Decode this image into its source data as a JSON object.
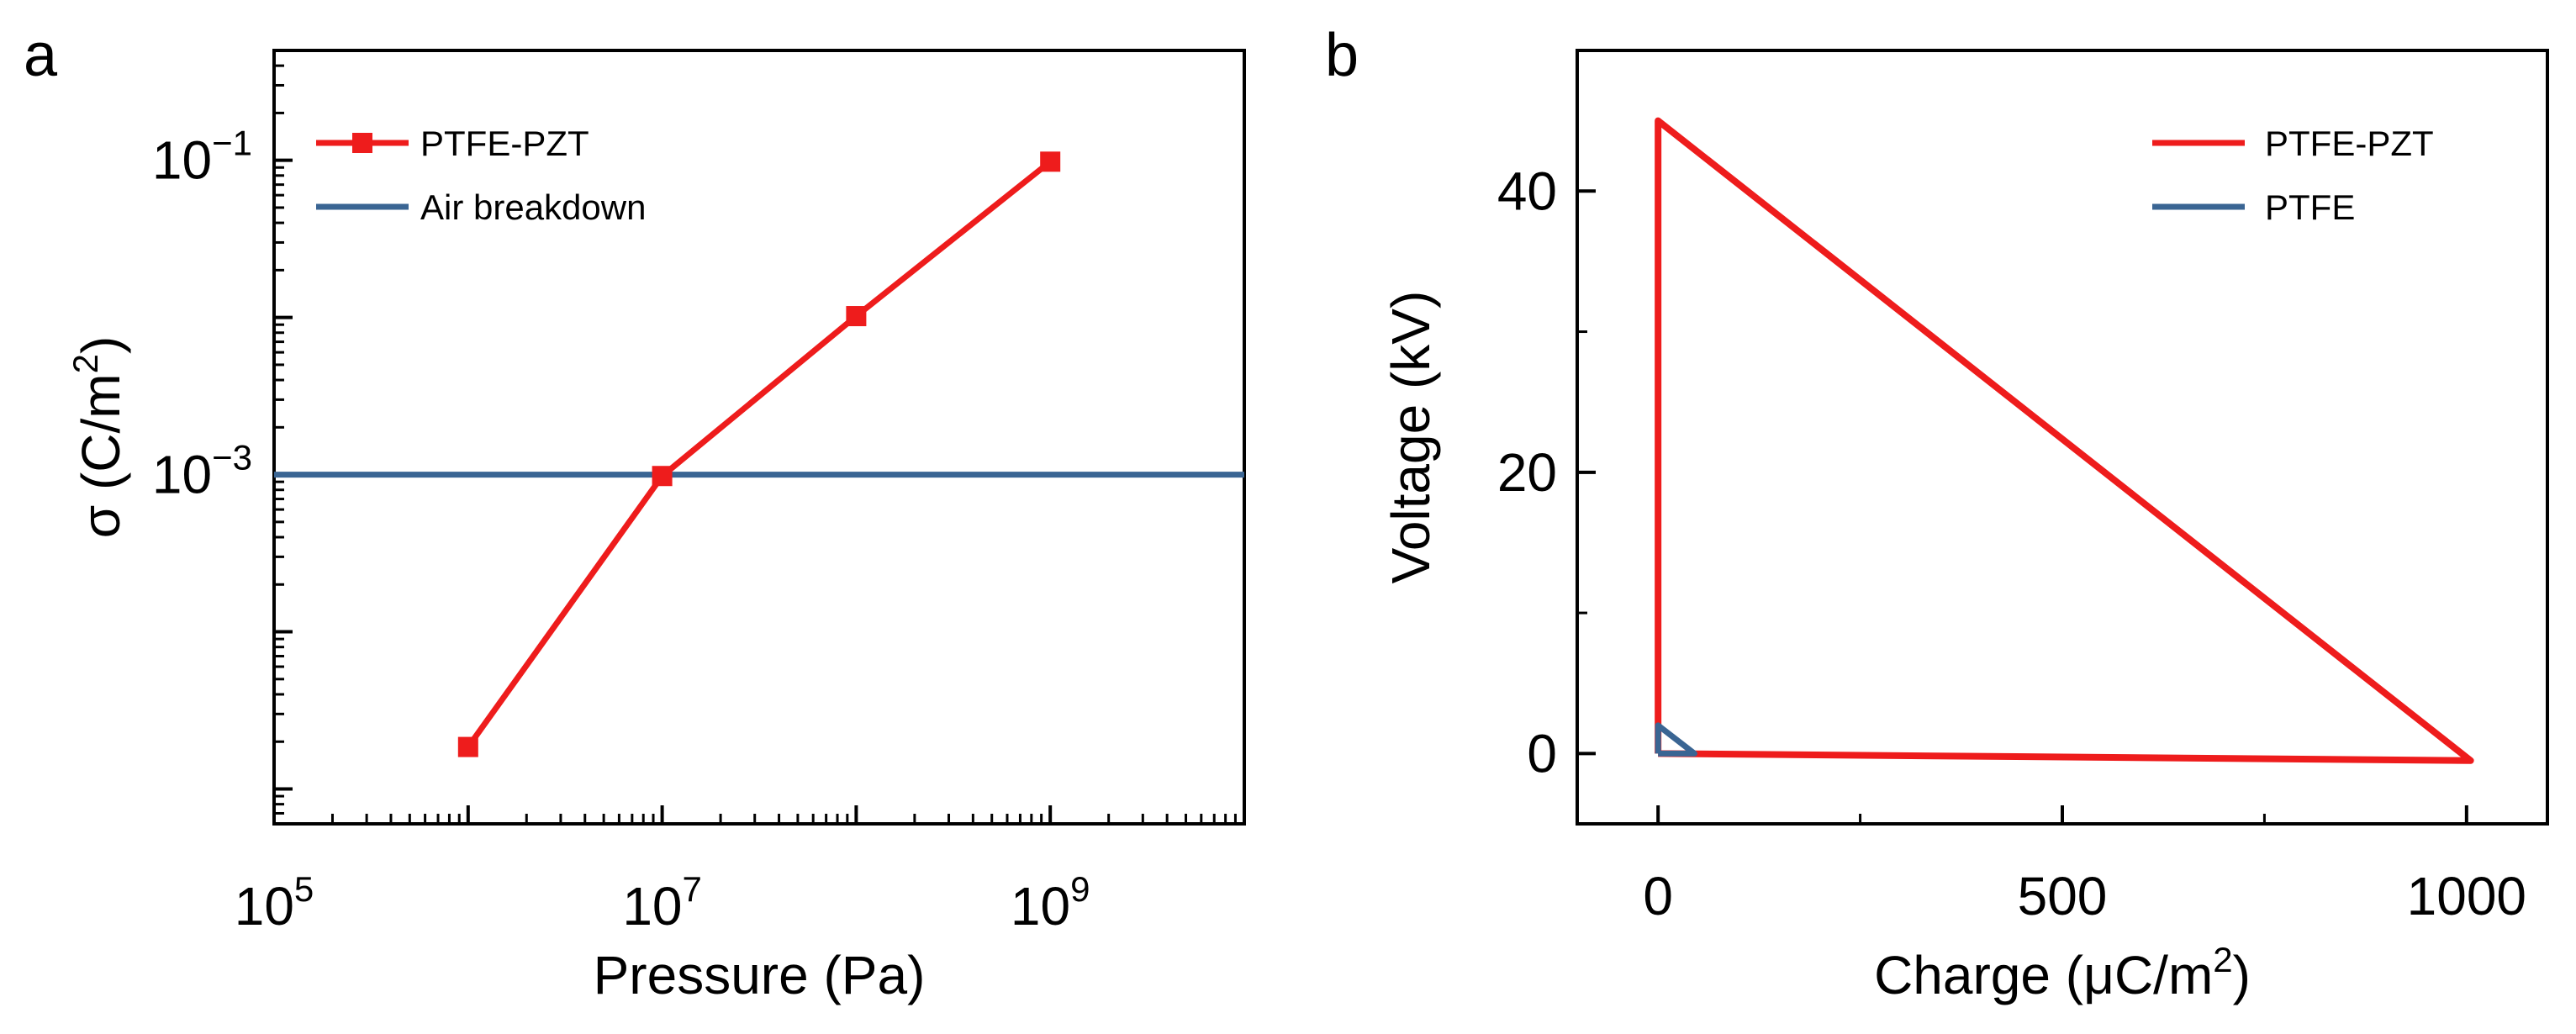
{
  "colors": {
    "ptfe_pzt": "#ee1c1c",
    "ptfe": "#3a6593",
    "air": "#3a6593",
    "axis": "#000000",
    "background": "#ffffff"
  },
  "chart_data": [
    {
      "panel": "a",
      "type": "line",
      "xscale": "log",
      "yscale": "log",
      "xlim": [
        100000,
        10000000000
      ],
      "ylim": [
        6e-06,
        0.5
      ],
      "xlabel": "Pressure (Pa)",
      "ylabel_prefix": "σ (C/m",
      "ylabel_sup": "2",
      "ylabel_suffix": ")",
      "x_ticks": [
        {
          "value": 100000,
          "base": "10",
          "exp": "5"
        },
        {
          "value": 10000000,
          "base": "10",
          "exp": "7"
        },
        {
          "value": 1000000000,
          "base": "10",
          "exp": "9"
        }
      ],
      "y_ticks": [
        {
          "value": 0.001,
          "base": "10",
          "exp": "−3"
        },
        {
          "value": 0.1,
          "base": "10",
          "exp": "−1"
        }
      ],
      "series": [
        {
          "name": "PTFE-PZT",
          "kind": "line-marker",
          "color": "#ee1c1c",
          "x": [
            1000000,
            10000000,
            100000000,
            1000000000
          ],
          "y": [
            1.85e-05,
            0.00098,
            0.0102,
            0.098
          ]
        },
        {
          "name": "Air breakdown",
          "kind": "hline",
          "color": "#3a6593",
          "y": 0.001
        }
      ],
      "legend_position": "top-left"
    },
    {
      "panel": "b",
      "type": "line",
      "xlim": [
        -100,
        1100
      ],
      "ylim": [
        -5,
        50
      ],
      "xlabel_prefix": "Charge (μC/m",
      "xlabel_sup": "2",
      "xlabel_suffix": ")",
      "ylabel": "Voltage (kV)",
      "x_ticks": [
        0,
        500,
        1000
      ],
      "y_ticks": [
        0,
        20,
        40
      ],
      "series": [
        {
          "name": "PTFE-PZT",
          "color": "#ee1c1c",
          "x": [
            0,
            0,
            1005,
            1005,
            0
          ],
          "y": [
            0,
            45,
            -0.5,
            -0.5,
            0
          ]
        },
        {
          "name": "PTFE",
          "color": "#3a6593",
          "x": [
            0,
            0,
            45,
            0
          ],
          "y": [
            0,
            2,
            0,
            0
          ]
        }
      ],
      "legend_position": "top-right"
    }
  ]
}
